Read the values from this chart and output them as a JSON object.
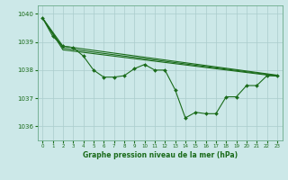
{
  "bg_color": "#cce8e8",
  "grid_color": "#aacccc",
  "line_color": "#1a6b1a",
  "title": "Graphe pression niveau de la mer (hPa)",
  "xlim": [
    -0.5,
    23.5
  ],
  "ylim": [
    1035.5,
    1040.3
  ],
  "yticks": [
    1036,
    1037,
    1038,
    1039,
    1040
  ],
  "xticks": [
    0,
    1,
    2,
    3,
    4,
    5,
    6,
    7,
    8,
    9,
    10,
    11,
    12,
    13,
    14,
    15,
    16,
    17,
    18,
    19,
    20,
    21,
    22,
    23
  ],
  "line1_x": [
    0,
    1,
    2,
    3,
    4,
    5,
    6,
    7,
    8,
    9,
    10,
    11,
    12,
    13,
    14,
    15,
    16,
    17,
    18,
    19,
    20,
    21,
    22,
    23
  ],
  "line1_y": [
    1039.85,
    1039.2,
    1038.85,
    1038.8,
    1038.5,
    1038.0,
    1037.75,
    1037.75,
    1037.8,
    1038.05,
    1038.2,
    1038.0,
    1038.0,
    1037.3,
    1036.3,
    1036.5,
    1036.45,
    1036.45,
    1037.05,
    1037.05,
    1037.45,
    1037.45,
    1037.8,
    1037.8
  ],
  "line2_x": [
    0,
    2,
    23
  ],
  "line2_y": [
    1039.85,
    1038.85,
    1037.82
  ],
  "line3_x": [
    0,
    2,
    23
  ],
  "line3_y": [
    1039.85,
    1038.78,
    1037.8
  ],
  "line4_x": [
    0,
    2,
    23
  ],
  "line4_y": [
    1039.85,
    1038.72,
    1037.78
  ]
}
